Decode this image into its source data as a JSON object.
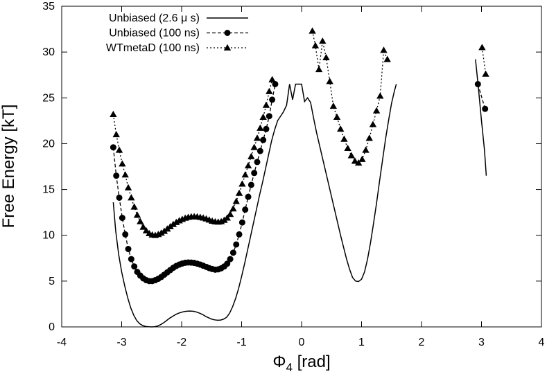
{
  "chart_data": {
    "type": "line",
    "title": "",
    "xlabel_main": "Φ",
    "xlabel_sub": "4",
    "xlabel_unit": " [rad]",
    "ylabel": "Free Energy [kT]",
    "xlim": [
      -4,
      4
    ],
    "ylim": [
      0,
      35
    ],
    "x_ticks": [
      -4,
      -3,
      -2,
      -1,
      0,
      1,
      2,
      3,
      4
    ],
    "x_tick_labels": [
      "-4",
      "-3",
      "-2",
      "-1",
      "0",
      "1",
      "2",
      "3",
      "4"
    ],
    "y_ticks": [
      0,
      5,
      10,
      15,
      20,
      25,
      30,
      35
    ],
    "y_tick_labels": [
      "0",
      "5",
      "10",
      "15",
      "20",
      "25",
      "30",
      "35"
    ],
    "legend_position": "top-left",
    "series": [
      {
        "name": "Unbiased (2.6 μ s)",
        "style": "solid",
        "marker": "none",
        "segments": [
          [
            [
              -3.14,
              13.6
            ],
            [
              -3.1,
              10.5
            ],
            [
              -3.05,
              7.9
            ],
            [
              -3.0,
              6.0
            ],
            [
              -2.95,
              4.5
            ],
            [
              -2.9,
              3.2
            ],
            [
              -2.85,
              2.1
            ],
            [
              -2.8,
              1.3
            ],
            [
              -2.75,
              0.7
            ],
            [
              -2.7,
              0.35
            ],
            [
              -2.65,
              0.15
            ],
            [
              -2.6,
              0.05
            ],
            [
              -2.55,
              0.02
            ],
            [
              -2.5,
              0.0
            ],
            [
              -2.45,
              0.02
            ],
            [
              -2.4,
              0.1
            ],
            [
              -2.35,
              0.25
            ],
            [
              -2.3,
              0.45
            ],
            [
              -2.25,
              0.7
            ],
            [
              -2.2,
              0.95
            ],
            [
              -2.15,
              1.15
            ],
            [
              -2.1,
              1.35
            ],
            [
              -2.05,
              1.5
            ],
            [
              -2.0,
              1.6
            ],
            [
              -1.95,
              1.68
            ],
            [
              -1.9,
              1.72
            ],
            [
              -1.85,
              1.73
            ],
            [
              -1.8,
              1.7
            ],
            [
              -1.75,
              1.62
            ],
            [
              -1.7,
              1.5
            ],
            [
              -1.65,
              1.35
            ],
            [
              -1.6,
              1.15
            ],
            [
              -1.55,
              1.0
            ],
            [
              -1.5,
              0.85
            ],
            [
              -1.45,
              0.77
            ],
            [
              -1.4,
              0.73
            ],
            [
              -1.35,
              0.75
            ],
            [
              -1.3,
              0.85
            ],
            [
              -1.25,
              1.05
            ],
            [
              -1.2,
              1.5
            ],
            [
              -1.15,
              2.2
            ],
            [
              -1.1,
              3.1
            ],
            [
              -1.05,
              4.2
            ],
            [
              -1.0,
              5.5
            ],
            [
              -0.95,
              6.9
            ],
            [
              -0.9,
              8.4
            ],
            [
              -0.85,
              9.9
            ],
            [
              -0.8,
              11.4
            ],
            [
              -0.75,
              12.9
            ],
            [
              -0.7,
              14.4
            ],
            [
              -0.65,
              15.8
            ],
            [
              -0.6,
              17.3
            ],
            [
              -0.55,
              18.8
            ],
            [
              -0.5,
              20.3
            ],
            [
              -0.45,
              21.5
            ],
            [
              -0.4,
              22.5
            ],
            [
              -0.35,
              23.0
            ],
            [
              -0.3,
              23.5
            ],
            [
              -0.25,
              24.2
            ],
            [
              -0.2,
              26.5
            ],
            [
              -0.15,
              24.8
            ],
            [
              -0.1,
              26.5
            ],
            [
              -0.05,
              26.5
            ],
            [
              0.0,
              26.5
            ],
            [
              0.05,
              24.6
            ],
            [
              0.1,
              25.0
            ],
            [
              0.15,
              24.5
            ],
            [
              0.2,
              22.8
            ],
            [
              0.25,
              21.2
            ],
            [
              0.3,
              19.8
            ],
            [
              0.35,
              18.4
            ],
            [
              0.4,
              17.0
            ],
            [
              0.45,
              15.6
            ],
            [
              0.5,
              14.2
            ],
            [
              0.55,
              12.8
            ],
            [
              0.6,
              11.4
            ],
            [
              0.65,
              10.0
            ],
            [
              0.7,
              8.7
            ],
            [
              0.75,
              7.4
            ],
            [
              0.8,
              6.3
            ],
            [
              0.85,
              5.4
            ],
            [
              0.9,
              5.0
            ],
            [
              0.95,
              4.95
            ],
            [
              1.0,
              5.2
            ],
            [
              1.05,
              6.0
            ],
            [
              1.1,
              7.4
            ],
            [
              1.15,
              9.2
            ],
            [
              1.2,
              11.3
            ],
            [
              1.25,
              13.5
            ],
            [
              1.3,
              15.9
            ],
            [
              1.35,
              18.2
            ],
            [
              1.4,
              20.5
            ],
            [
              1.45,
              22.5
            ],
            [
              1.5,
              24.4
            ],
            [
              1.55,
              25.8
            ],
            [
              1.58,
              26.5
            ]
          ],
          [
            [
              2.9,
              29.2
            ],
            [
              2.95,
              26.0
            ],
            [
              3.0,
              22.5
            ],
            [
              3.05,
              19.3
            ],
            [
              3.08,
              16.5
            ]
          ]
        ]
      },
      {
        "name": "Unbiased (100 ns)",
        "style": "dashed",
        "marker": "circle",
        "segments": [
          [
            [
              -3.14,
              19.6
            ],
            [
              -3.09,
              16.5
            ],
            [
              -3.04,
              14.1
            ],
            [
              -2.99,
              11.9
            ],
            [
              -2.94,
              10.1
            ],
            [
              -2.89,
              8.5
            ],
            [
              -2.84,
              7.4
            ],
            [
              -2.79,
              6.6
            ],
            [
              -2.74,
              6.0
            ],
            [
              -2.69,
              5.6
            ],
            [
              -2.64,
              5.3
            ],
            [
              -2.59,
              5.1
            ],
            [
              -2.54,
              5.0
            ],
            [
              -2.49,
              5.0
            ],
            [
              -2.44,
              5.1
            ],
            [
              -2.39,
              5.25
            ],
            [
              -2.34,
              5.45
            ],
            [
              -2.29,
              5.7
            ],
            [
              -2.24,
              5.95
            ],
            [
              -2.19,
              6.2
            ],
            [
              -2.14,
              6.45
            ],
            [
              -2.09,
              6.65
            ],
            [
              -2.04,
              6.8
            ],
            [
              -1.99,
              6.92
            ],
            [
              -1.94,
              7.0
            ],
            [
              -1.89,
              7.03
            ],
            [
              -1.84,
              7.02
            ],
            [
              -1.79,
              6.98
            ],
            [
              -1.74,
              6.9
            ],
            [
              -1.69,
              6.8
            ],
            [
              -1.64,
              6.68
            ],
            [
              -1.59,
              6.55
            ],
            [
              -1.54,
              6.42
            ],
            [
              -1.49,
              6.32
            ],
            [
              -1.44,
              6.25
            ],
            [
              -1.39,
              6.28
            ],
            [
              -1.34,
              6.4
            ],
            [
              -1.29,
              6.6
            ],
            [
              -1.24,
              6.9
            ],
            [
              -1.19,
              7.4
            ],
            [
              -1.14,
              8.1
            ],
            [
              -1.09,
              9.0
            ],
            [
              -1.04,
              10.1
            ],
            [
              -0.99,
              11.4
            ],
            [
              -0.94,
              12.8
            ],
            [
              -0.89,
              14.2
            ],
            [
              -0.84,
              15.5
            ],
            [
              -0.79,
              16.8
            ],
            [
              -0.74,
              18.0
            ],
            [
              -0.69,
              19.2
            ],
            [
              -0.64,
              20.4
            ],
            [
              -0.59,
              21.6
            ],
            [
              -0.54,
              23.0
            ],
            [
              -0.49,
              24.8
            ],
            [
              -0.44,
              26.5
            ]
          ],
          [
            [
              2.94,
              26.5
            ],
            [
              3.06,
              23.8
            ]
          ]
        ]
      },
      {
        "name": "WTmetaD (100 ns)",
        "style": "dotted",
        "marker": "triangle",
        "segments": [
          [
            [
              -3.14,
              23.2
            ],
            [
              -3.09,
              21.0
            ],
            [
              -3.04,
              19.3
            ],
            [
              -2.99,
              17.8
            ],
            [
              -2.94,
              16.6
            ],
            [
              -2.89,
              15.2
            ],
            [
              -2.84,
              14.1
            ],
            [
              -2.79,
              13.1
            ],
            [
              -2.74,
              12.2
            ],
            [
              -2.69,
              11.5
            ],
            [
              -2.64,
              10.9
            ],
            [
              -2.59,
              10.5
            ],
            [
              -2.54,
              10.2
            ],
            [
              -2.49,
              10.05
            ],
            [
              -2.44,
              10.0
            ],
            [
              -2.39,
              10.1
            ],
            [
              -2.34,
              10.25
            ],
            [
              -2.29,
              10.45
            ],
            [
              -2.24,
              10.7
            ],
            [
              -2.19,
              10.95
            ],
            [
              -2.14,
              11.2
            ],
            [
              -2.09,
              11.42
            ],
            [
              -2.04,
              11.6
            ],
            [
              -1.99,
              11.75
            ],
            [
              -1.94,
              11.88
            ],
            [
              -1.89,
              11.97
            ],
            [
              -1.84,
              12.02
            ],
            [
              -1.79,
              12.04
            ],
            [
              -1.74,
              12.02
            ],
            [
              -1.69,
              11.97
            ],
            [
              -1.64,
              11.9
            ],
            [
              -1.59,
              11.8
            ],
            [
              -1.54,
              11.68
            ],
            [
              -1.49,
              11.56
            ],
            [
              -1.44,
              11.48
            ],
            [
              -1.39,
              11.45
            ],
            [
              -1.34,
              11.5
            ],
            [
              -1.29,
              11.65
            ],
            [
              -1.24,
              11.9
            ],
            [
              -1.19,
              12.3
            ],
            [
              -1.14,
              12.9
            ],
            [
              -1.09,
              13.7
            ],
            [
              -1.04,
              14.6
            ],
            [
              -0.99,
              15.6
            ],
            [
              -0.94,
              16.6
            ],
            [
              -0.89,
              17.6
            ],
            [
              -0.84,
              18.6
            ],
            [
              -0.79,
              19.6
            ],
            [
              -0.74,
              20.6
            ],
            [
              -0.69,
              21.7
            ],
            [
              -0.64,
              22.9
            ],
            [
              -0.59,
              24.2
            ],
            [
              -0.54,
              25.7
            ],
            [
              -0.49,
              27.0
            ]
          ],
          [
            [
              0.18,
              32.3
            ],
            [
              0.23,
              30.7
            ],
            [
              0.29,
              28.1
            ],
            [
              0.35,
              31.2
            ],
            [
              0.41,
              29.4
            ],
            [
              0.47,
              26.8
            ],
            [
              0.53,
              24.1
            ],
            [
              0.59,
              22.9
            ],
            [
              0.65,
              21.6
            ],
            [
              0.71,
              20.5
            ],
            [
              0.77,
              19.5
            ],
            [
              0.83,
              18.7
            ],
            [
              0.89,
              18.1
            ],
            [
              0.95,
              17.9
            ],
            [
              1.01,
              18.3
            ],
            [
              1.07,
              19.3
            ],
            [
              1.13,
              20.6
            ],
            [
              1.19,
              22.1
            ],
            [
              1.25,
              23.6
            ],
            [
              1.31,
              25.2
            ],
            [
              1.37,
              30.2
            ],
            [
              1.43,
              29.2
            ]
          ],
          [
            [
              3.01,
              30.5
            ],
            [
              3.07,
              27.6
            ]
          ]
        ]
      }
    ]
  }
}
